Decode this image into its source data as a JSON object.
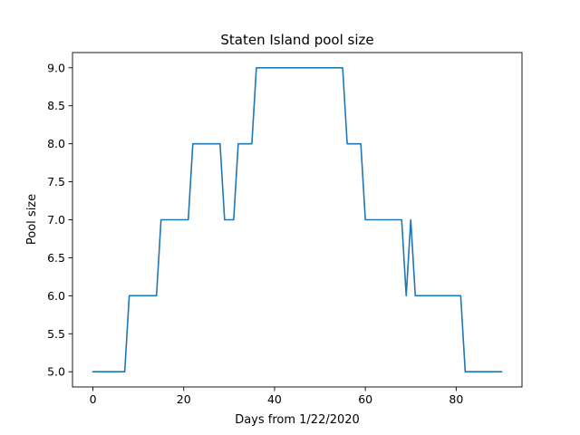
{
  "chart_data": {
    "type": "line",
    "title": "Staten Island pool size",
    "xlabel": "Days from 1/22/2020",
    "ylabel": "Pool size",
    "xlim": [
      -4.5,
      94.5
    ],
    "ylim": [
      4.8,
      9.2
    ],
    "xticks": [
      0,
      20,
      40,
      60,
      80
    ],
    "yticks": [
      5.0,
      5.5,
      6.0,
      6.5,
      7.0,
      7.5,
      8.0,
      8.5,
      9.0
    ],
    "grid": false,
    "color": "#1f77b4",
    "series": [
      {
        "x": [
          0,
          7,
          8,
          14,
          15,
          21,
          22,
          28,
          29,
          31,
          32,
          35,
          36,
          55,
          56,
          59,
          60,
          68,
          69,
          70,
          71,
          81,
          82,
          90
        ],
        "values": [
          5,
          5,
          6,
          6,
          7,
          7,
          8,
          8,
          7,
          7,
          8,
          8,
          9,
          9,
          8,
          8,
          7,
          7,
          6,
          7,
          6,
          6,
          5,
          5
        ]
      }
    ]
  }
}
